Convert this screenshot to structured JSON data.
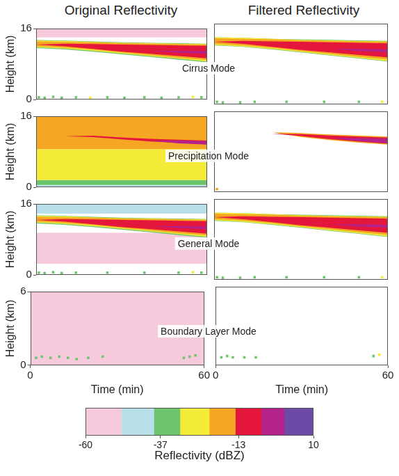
{
  "chart_data": [
    {
      "type": "area",
      "title": "Original Reflectivity",
      "ylabel": "Height (km)",
      "annotation": "Cirrus Mode",
      "x": [
        0,
        10,
        20,
        30,
        40,
        50,
        60
      ],
      "xlim": [
        0,
        60
      ],
      "ylim": [
        0,
        16
      ],
      "yticks": [
        0,
        16
      ],
      "tick_labels": "y",
      "grid": false,
      "layers": [
        {
          "dbz": -55,
          "base": [
            14,
            14,
            14,
            14,
            14,
            14,
            14
          ],
          "top": [
            16,
            16,
            16,
            16,
            16,
            16,
            16
          ]
        },
        {
          "dbz": -35,
          "base": [
            11.6,
            11.3,
            10.8,
            10.2,
            9.6,
            9.0,
            8.4
          ],
          "top": [
            13.4,
            13.3,
            13.1,
            12.9,
            12.8,
            12.7,
            12.6
          ]
        },
        {
          "dbz": -27,
          "base": [
            11.8,
            11.5,
            11.0,
            10.4,
            9.8,
            9.2,
            8.6
          ],
          "top": [
            13.3,
            13.2,
            13.0,
            12.8,
            12.7,
            12.6,
            12.5
          ]
        },
        {
          "dbz": -18,
          "base": [
            12.0,
            11.7,
            11.2,
            10.6,
            10.0,
            9.4,
            8.9
          ],
          "top": [
            13.1,
            13.0,
            12.9,
            12.7,
            12.6,
            12.5,
            12.4
          ]
        },
        {
          "dbz": -10,
          "base": [
            12.4,
            12.0,
            11.4,
            10.8,
            10.3,
            9.8,
            9.3
          ],
          "top": [
            12.4,
            12.6,
            12.5,
            12.4,
            12.3,
            12.2,
            12.1
          ]
        },
        {
          "dbz": -3,
          "base": [
            12.2,
            12.2,
            12.0,
            11.5,
            11.0,
            10.6,
            10.3
          ],
          "top": [
            12.2,
            12.2,
            12.0,
            11.5,
            11.0,
            11.0,
            10.9
          ]
        }
      ],
      "echoes": {
        "x": [
          1,
          3,
          6,
          9,
          14,
          19,
          25,
          31,
          38,
          44,
          50,
          55,
          58
        ],
        "y": [
          0.5,
          0.4,
          0.6,
          0.4,
          0.5,
          0.4,
          0.5,
          0.4,
          0.5,
          0.4,
          0.5,
          0.6,
          0.5
        ],
        "dbz": [
          -35,
          -35,
          -35,
          -35,
          -35,
          -27,
          -35,
          -35,
          -35,
          -35,
          -35,
          -27,
          -35
        ]
      }
    },
    {
      "type": "area",
      "title": "Filtered Reflectivity",
      "x": [
        0,
        10,
        20,
        30,
        40,
        50,
        60
      ],
      "xlim": [
        0,
        60
      ],
      "ylim": [
        0,
        16
      ],
      "tick_labels": false,
      "grid": false,
      "layers": [
        {
          "dbz": -35,
          "base": [
            11.7,
            11.4,
            10.9,
            10.3,
            9.7,
            9.1,
            8.5
          ],
          "top": [
            13.3,
            13.2,
            13.0,
            12.9,
            12.8,
            12.7,
            12.6
          ]
        },
        {
          "dbz": -27,
          "base": [
            11.8,
            11.5,
            11.0,
            10.4,
            9.8,
            9.2,
            8.6
          ],
          "top": [
            13.3,
            13.2,
            13.0,
            12.8,
            12.7,
            12.6,
            12.5
          ]
        },
        {
          "dbz": -18,
          "base": [
            12.0,
            11.7,
            11.2,
            10.6,
            10.0,
            9.4,
            8.9
          ],
          "top": [
            13.1,
            13.0,
            12.9,
            12.7,
            12.6,
            12.5,
            12.4
          ]
        },
        {
          "dbz": -10,
          "base": [
            12.4,
            12.0,
            11.4,
            10.8,
            10.3,
            9.8,
            9.3
          ],
          "top": [
            12.4,
            12.6,
            12.5,
            12.4,
            12.3,
            12.2,
            12.1
          ]
        },
        {
          "dbz": -3,
          "base": [
            12.2,
            12.2,
            12.0,
            11.5,
            11.0,
            10.6,
            10.3
          ],
          "top": [
            12.2,
            12.2,
            12.0,
            11.5,
            11.0,
            11.0,
            10.9
          ]
        }
      ],
      "echoes": {
        "x": [
          1,
          3,
          9,
          14,
          25,
          38,
          50,
          58
        ],
        "y": [
          0.5,
          0.4,
          0.4,
          0.5,
          0.5,
          0.5,
          0.5,
          0.5
        ],
        "dbz": [
          -35,
          -35,
          -35,
          -35,
          -35,
          -35,
          -35,
          -27
        ]
      }
    },
    {
      "type": "area",
      "ylabel": "Height (km)",
      "annotation": "Precipitation Mode",
      "x": [
        0,
        10,
        20,
        30,
        40,
        50,
        60
      ],
      "xlim": [
        0,
        60
      ],
      "ylim": [
        0,
        16
      ],
      "yticks": [
        0,
        16
      ],
      "tick_labels": "y",
      "grid": false,
      "layers": [
        {
          "dbz": -44,
          "base": [
            0,
            0,
            0,
            0,
            0,
            0,
            0
          ],
          "top": [
            0.5,
            0.5,
            0.5,
            0.5,
            0.5,
            0.5,
            0.5
          ]
        },
        {
          "dbz": -35,
          "base": [
            0.5,
            0.5,
            0.5,
            0.5,
            0.5,
            0.5,
            0.5
          ],
          "top": [
            1.6,
            1.6,
            1.6,
            1.6,
            1.6,
            1.6,
            1.6
          ]
        },
        {
          "dbz": -27,
          "base": [
            1.6,
            1.6,
            1.6,
            1.6,
            1.6,
            1.6,
            1.6
          ],
          "top": [
            8.6,
            8.6,
            8.6,
            8.6,
            8.6,
            8.6,
            8.6
          ]
        },
        {
          "dbz": -18,
          "base": [
            8.6,
            8.6,
            8.6,
            8.6,
            8.6,
            8.6,
            8.6
          ],
          "top": [
            16,
            16,
            16,
            16,
            16,
            16,
            16
          ]
        },
        {
          "dbz": -10,
          "base": [
            11.5,
            11.5,
            11.3,
            10.8,
            10.3,
            10.0,
            9.7
          ],
          "top": [
            11.5,
            11.5,
            11.6,
            11.2,
            10.9,
            10.7,
            10.5
          ]
        },
        {
          "dbz": -3,
          "base": [
            11.0,
            11.0,
            11.0,
            10.8,
            10.5,
            9.9,
            9.6
          ],
          "top": [
            11.0,
            11.0,
            11.0,
            10.8,
            10.5,
            10.5,
            10.4
          ]
        }
      ]
    },
    {
      "type": "area",
      "x": [
        0,
        10,
        20,
        30,
        40,
        50,
        60
      ],
      "xlim": [
        0,
        60
      ],
      "ylim": [
        0,
        16
      ],
      "tick_labels": false,
      "grid": false,
      "layers": [
        {
          "dbz": -18,
          "base": [
            11.9,
            11.9,
            11.9,
            10.9,
            10.3,
            9.8,
            9.4
          ],
          "top": [
            11.9,
            11.9,
            11.9,
            11.7,
            11.4,
            11.2,
            11.0
          ]
        },
        {
          "dbz": -10,
          "base": [
            11.6,
            11.6,
            11.6,
            11.1,
            10.5,
            10.0,
            9.6
          ],
          "top": [
            11.6,
            11.6,
            11.6,
            11.5,
            11.2,
            11.0,
            10.8
          ]
        },
        {
          "dbz": -3,
          "base": [
            11.0,
            11.0,
            11.0,
            11.0,
            10.8,
            10.1,
            9.7
          ],
          "top": [
            11.0,
            11.0,
            11.0,
            11.0,
            10.8,
            10.7,
            10.6
          ]
        }
      ],
      "echoes": {
        "x": [
          1
        ],
        "y": [
          0.6
        ],
        "dbz": [
          -18
        ]
      }
    },
    {
      "type": "area",
      "ylabel": "Height (km)",
      "annotation": "General Mode",
      "x": [
        0,
        10,
        20,
        30,
        40,
        50,
        60
      ],
      "xlim": [
        0,
        60
      ],
      "ylim": [
        0,
        16
      ],
      "yticks": [
        0,
        16
      ],
      "tick_labels": "y",
      "grid": false,
      "layers": [
        {
          "dbz": -44,
          "base": [
            13.8,
            13.8,
            13.8,
            13.8,
            13.8,
            13.8,
            13.8
          ],
          "top": [
            16,
            16,
            16,
            16,
            16,
            16,
            16
          ]
        },
        {
          "dbz": -55,
          "base": [
            2.5,
            2.5,
            2.5,
            2.5,
            2.5,
            2.5,
            2.5
          ],
          "top": [
            9.5,
            9.5,
            9.5,
            9.5,
            9.5,
            9.5,
            9.5
          ]
        },
        {
          "dbz": -35,
          "base": [
            11.6,
            11.3,
            10.8,
            10.2,
            9.6,
            9.0,
            8.4
          ],
          "top": [
            13.4,
            13.3,
            13.1,
            12.9,
            12.8,
            12.7,
            12.6
          ]
        },
        {
          "dbz": -27,
          "base": [
            11.8,
            11.5,
            11.0,
            10.4,
            9.8,
            9.2,
            8.6
          ],
          "top": [
            13.3,
            13.2,
            13.0,
            12.8,
            12.7,
            12.6,
            12.5
          ]
        },
        {
          "dbz": -18,
          "base": [
            12.0,
            11.7,
            11.2,
            10.6,
            10.0,
            9.4,
            8.9
          ],
          "top": [
            13.1,
            13.0,
            12.9,
            12.7,
            12.6,
            12.5,
            12.4
          ]
        },
        {
          "dbz": -10,
          "base": [
            12.4,
            12.0,
            11.4,
            10.8,
            10.3,
            9.8,
            9.3
          ],
          "top": [
            12.4,
            12.6,
            12.5,
            12.4,
            12.3,
            12.2,
            12.1
          ]
        },
        {
          "dbz": -3,
          "base": [
            12.2,
            12.2,
            12.0,
            11.5,
            11.0,
            10.6,
            10.3
          ],
          "top": [
            12.2,
            12.2,
            12.0,
            11.5,
            11.0,
            11.0,
            10.9
          ]
        }
      ],
      "echoes": {
        "x": [
          1,
          3,
          6,
          9,
          14,
          25,
          38,
          50,
          55,
          58
        ],
        "y": [
          0.5,
          0.4,
          0.6,
          0.4,
          0.5,
          0.5,
          0.5,
          0.5,
          0.6,
          0.5
        ],
        "dbz": [
          -35,
          -35,
          -35,
          -35,
          -35,
          -35,
          -35,
          -35,
          -27,
          -35
        ]
      }
    },
    {
      "type": "area",
      "x": [
        0,
        10,
        20,
        30,
        40,
        50,
        60
      ],
      "xlim": [
        0,
        60
      ],
      "ylim": [
        0,
        16
      ],
      "tick_labels": false,
      "grid": false,
      "layers": [
        {
          "dbz": -35,
          "base": [
            11.7,
            11.4,
            10.9,
            10.3,
            9.7,
            9.1,
            8.5
          ],
          "top": [
            13.3,
            13.2,
            13.0,
            12.9,
            12.8,
            12.7,
            12.6
          ]
        },
        {
          "dbz": -27,
          "base": [
            11.8,
            11.5,
            11.0,
            10.4,
            9.8,
            9.2,
            8.6
          ],
          "top": [
            13.3,
            13.2,
            13.0,
            12.8,
            12.7,
            12.6,
            12.5
          ]
        },
        {
          "dbz": -18,
          "base": [
            12.0,
            11.7,
            11.2,
            10.6,
            10.0,
            9.4,
            8.9
          ],
          "top": [
            13.1,
            13.0,
            12.9,
            12.7,
            12.6,
            12.5,
            12.4
          ]
        },
        {
          "dbz": -10,
          "base": [
            12.4,
            12.0,
            11.4,
            10.8,
            10.3,
            9.8,
            9.3
          ],
          "top": [
            12.4,
            12.6,
            12.5,
            12.4,
            12.3,
            12.2,
            12.1
          ]
        },
        {
          "dbz": -3,
          "base": [
            12.2,
            12.2,
            12.0,
            11.5,
            11.0,
            10.6,
            10.3
          ],
          "top": [
            12.2,
            12.2,
            12.0,
            11.5,
            11.0,
            11.0,
            10.9
          ]
        }
      ],
      "echoes": {
        "x": [
          1,
          3,
          9,
          14,
          25,
          38,
          50,
          58
        ],
        "y": [
          0.5,
          0.4,
          0.4,
          0.5,
          0.5,
          0.5,
          0.5,
          0.5
        ],
        "dbz": [
          -35,
          -35,
          -35,
          -35,
          -35,
          -35,
          -35,
          -27
        ]
      }
    },
    {
      "type": "area",
      "ylabel": "Height (km)",
      "xlabel": "Time (min)",
      "annotation": "Boundary Layer Mode",
      "x": [
        0,
        10,
        20,
        30,
        40,
        50,
        60
      ],
      "xlim": [
        0,
        60
      ],
      "ylim": [
        0,
        6
      ],
      "xticks": [
        0,
        60
      ],
      "yticks": [
        0,
        6
      ],
      "grid": false,
      "layers": [
        {
          "dbz": -55,
          "base": [
            0,
            0,
            0,
            0,
            0,
            0,
            0
          ],
          "top": [
            6,
            6,
            6,
            6,
            6,
            6,
            6
          ]
        }
      ],
      "echoes": {
        "x": [
          2,
          4,
          7,
          10,
          13,
          16,
          20,
          25,
          53,
          55,
          57
        ],
        "y": [
          0.6,
          0.7,
          0.6,
          0.7,
          0.6,
          0.5,
          0.6,
          0.7,
          0.6,
          0.7,
          0.8
        ],
        "dbz": [
          -35,
          -35,
          -35,
          -35,
          -35,
          -35,
          -35,
          -35,
          -35,
          -35,
          -35
        ]
      }
    },
    {
      "type": "area",
      "xlabel": "Time (min)",
      "x": [
        0,
        10,
        20,
        30,
        40,
        50,
        60
      ],
      "xlim": [
        0,
        60
      ],
      "ylim": [
        0,
        6
      ],
      "xticks": [
        0,
        60
      ],
      "tick_labels": "x",
      "grid": false,
      "layers": [],
      "echoes": {
        "x": [
          2,
          4,
          6,
          10,
          14,
          55,
          57
        ],
        "y": [
          0.6,
          0.7,
          0.6,
          0.6,
          0.6,
          0.7,
          0.8
        ],
        "dbz": [
          -35,
          -35,
          -35,
          -35,
          -35,
          -35,
          -27
        ]
      }
    },
    {
      "type": "colorbar",
      "xlabel": "Reflectivity (dBZ)",
      "xlim": [
        -60,
        10
      ],
      "xticks": [
        -60,
        -37,
        -13,
        10
      ],
      "bins": [
        -60,
        -49,
        -39,
        -31,
        -22,
        -14,
        -6,
        1,
        10
      ],
      "colors": [
        "#f6cadc",
        "#b9dfea",
        "#6cc56a",
        "#f5ec3a",
        "#f5a623",
        "#e4163c",
        "#b4228c",
        "#6b4aa8"
      ]
    }
  ]
}
